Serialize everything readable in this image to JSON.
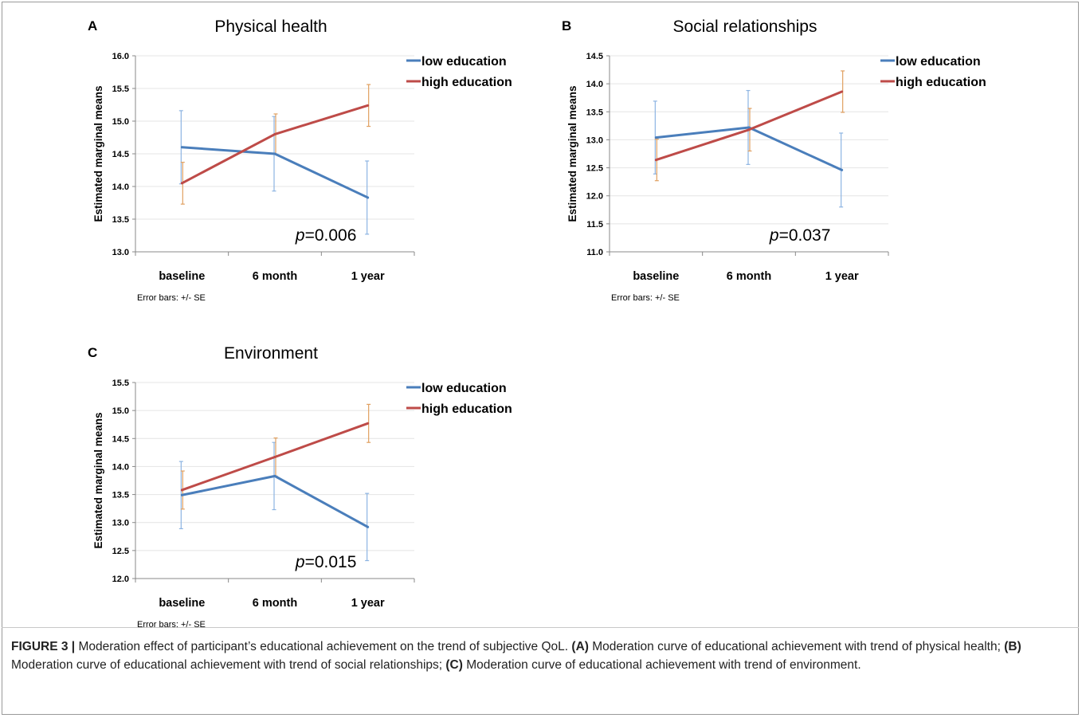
{
  "chart_data": [
    {
      "type": "line",
      "panel_label": "A",
      "title": "Physical health",
      "ylabel": "Estimated marginal means",
      "xlabel": "",
      "categories": [
        "baseline",
        "6 month",
        "1 year"
      ],
      "ylim": [
        13.0,
        16.0
      ],
      "yticks": [
        "13.0",
        "13.5",
        "14.0",
        "14.5",
        "15.0",
        "15.5",
        "16.0"
      ],
      "grid": true,
      "legend": "top-right",
      "series": [
        {
          "name": "low education",
          "color": "#4a7ebb",
          "values": [
            14.6,
            14.5,
            13.83
          ],
          "err": [
            0.56,
            0.57,
            0.56
          ]
        },
        {
          "name": "high education",
          "color": "#be4b48",
          "values": [
            14.05,
            14.8,
            15.24
          ],
          "err": [
            0.32,
            0.31,
            0.32
          ]
        }
      ],
      "annotation": {
        "p": "p",
        "rest": "=0.006"
      },
      "note": "Error bars: +/- SE"
    },
    {
      "type": "line",
      "panel_label": "B",
      "title": "Social relationships",
      "ylabel": "Estimated marginal means",
      "xlabel": "",
      "categories": [
        "baseline",
        "6 month",
        "1 year"
      ],
      "ylim": [
        11.0,
        14.5
      ],
      "yticks": [
        "11.0",
        "11.5",
        "12.0",
        "12.5",
        "13.0",
        "13.5",
        "14.0",
        "14.5"
      ],
      "grid": true,
      "legend": "top-right",
      "series": [
        {
          "name": "low education",
          "color": "#4a7ebb",
          "values": [
            13.04,
            13.22,
            12.46
          ],
          "err": [
            0.65,
            0.66,
            0.66
          ]
        },
        {
          "name": "high education",
          "color": "#be4b48",
          "values": [
            12.64,
            13.18,
            13.86
          ],
          "err": [
            0.37,
            0.38,
            0.37
          ]
        }
      ],
      "annotation": {
        "p": "p",
        "rest": "=0.037"
      },
      "note": "Error bars: +/- SE"
    },
    {
      "type": "line",
      "panel_label": "C",
      "title": "Environment",
      "ylabel": "Estimated marginal means",
      "xlabel": "",
      "categories": [
        "baseline",
        "6 month",
        "1 year"
      ],
      "ylim": [
        12.0,
        15.5
      ],
      "yticks": [
        "12.0",
        "12.5",
        "13.0",
        "13.5",
        "14.0",
        "14.5",
        "15.0",
        "15.5"
      ],
      "grid": true,
      "legend": "top-right",
      "series": [
        {
          "name": "low education",
          "color": "#4a7ebb",
          "values": [
            13.49,
            13.83,
            12.92
          ],
          "err": [
            0.6,
            0.6,
            0.6
          ]
        },
        {
          "name": "high education",
          "color": "#be4b48",
          "values": [
            13.58,
            14.17,
            14.77
          ],
          "err": [
            0.34,
            0.34,
            0.34
          ]
        }
      ],
      "annotation": {
        "p": "p",
        "rest": "=0.015"
      },
      "note": "Error bars: +/- SE"
    }
  ],
  "caption": {
    "figure_label": "FIGURE 3 |",
    "intro": " Moderation effect of participant’s educational achievement on the trend of subjective QoL. ",
    "a_label": "(A)",
    "a_text": " Moderation curve of educational achievement with trend of physical health; ",
    "b_label": "(B)",
    "b_text": " Moderation curve of educational achievement with trend of social relationships; ",
    "c_label": "(C)",
    "c_text": " Moderation curve of educational achievement with trend of environment."
  }
}
